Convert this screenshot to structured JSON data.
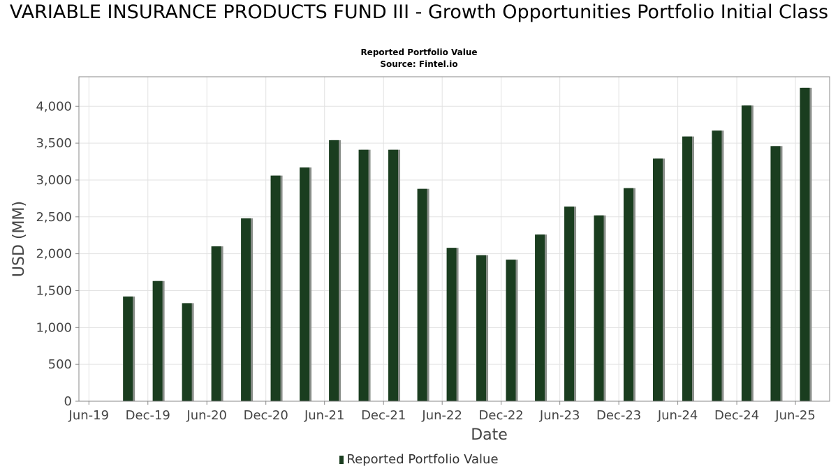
{
  "title": "VARIABLE INSURANCE PRODUCTS FUND III - Growth Opportunities Portfolio Initial Class",
  "subtitle": "Reported Portfolio Value",
  "source": "Source: Fintel.io",
  "legend": {
    "label": "Reported Portfolio Value"
  },
  "colors": {
    "bar": "#1a3d1f",
    "bar_shadow": "#8a8f8a",
    "grid": "#e2e2e2",
    "axis": "#888888"
  },
  "chart_data": {
    "type": "bar",
    "title": "VARIABLE INSURANCE PRODUCTS FUND III - Growth Opportunities Portfolio Initial Class",
    "subtitle": "Reported Portfolio Value",
    "xlabel": "Date",
    "ylabel": "USD (MM)",
    "ylim": [
      0,
      4400
    ],
    "yticks": [
      0,
      500,
      1000,
      1500,
      2000,
      2500,
      3000,
      3500,
      4000
    ],
    "ytick_labels": [
      "0",
      "500",
      "1,000",
      "1,500",
      "2,000",
      "2,500",
      "3,000",
      "3,500",
      "4,000"
    ],
    "xlim": [
      "2019-05-01",
      "2025-09-15"
    ],
    "xticks": [
      "2019-06-01",
      "2019-12-01",
      "2020-06-01",
      "2020-12-01",
      "2021-06-01",
      "2021-12-01",
      "2022-06-01",
      "2022-12-01",
      "2023-06-01",
      "2023-12-01",
      "2024-06-01",
      "2024-12-01",
      "2025-06-01"
    ],
    "xtick_labels": [
      "Jun-19",
      "Dec-19",
      "Jun-20",
      "Dec-20",
      "Jun-21",
      "Dec-21",
      "Jun-22",
      "Dec-22",
      "Jun-23",
      "Dec-23",
      "Jun-24",
      "Dec-24",
      "Jun-25"
    ],
    "grid": true,
    "legend_position": "bottom-center",
    "series": [
      {
        "name": "Reported Portfolio Value",
        "x": [
          "2019-09-30",
          "2019-12-31",
          "2020-03-31",
          "2020-06-30",
          "2020-09-30",
          "2020-12-31",
          "2021-03-31",
          "2021-06-30",
          "2021-09-30",
          "2021-12-31",
          "2022-03-31",
          "2022-06-30",
          "2022-09-30",
          "2022-12-31",
          "2023-03-31",
          "2023-06-30",
          "2023-09-30",
          "2023-12-31",
          "2024-03-31",
          "2024-06-30",
          "2024-09-30",
          "2024-12-31",
          "2025-03-31",
          "2025-06-30"
        ],
        "values": [
          1420,
          1630,
          1330,
          2100,
          2480,
          3060,
          3170,
          3540,
          3410,
          3410,
          2880,
          2080,
          1980,
          1920,
          2260,
          2640,
          2520,
          2890,
          3290,
          3590,
          3670,
          4010,
          3460,
          4250
        ]
      }
    ]
  }
}
